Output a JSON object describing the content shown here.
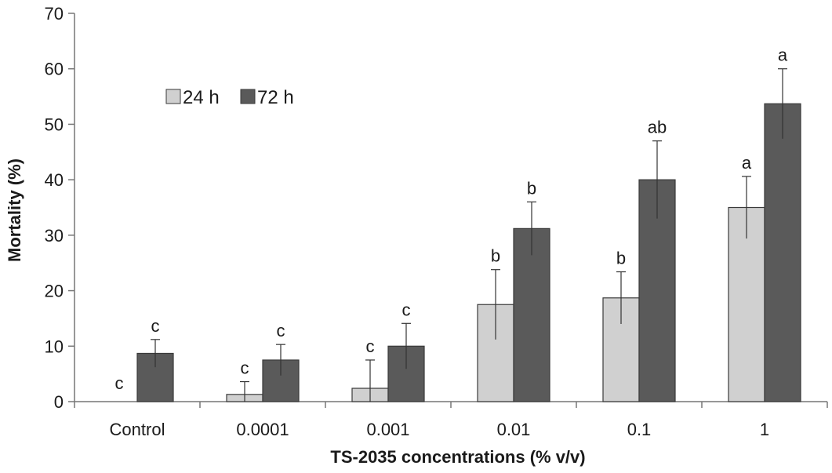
{
  "chart_data": {
    "type": "bar",
    "title": "",
    "xlabel": "TS-2035 concentrations (% v/v)",
    "ylabel": "Mortality (%)",
    "ylim": [
      0,
      70
    ],
    "yticks": [
      "0",
      "10",
      "20",
      "30",
      "40",
      "50",
      "60",
      "70"
    ],
    "categories": [
      "Control",
      "0.0001",
      "0.001",
      "0.01",
      "0.1",
      "1"
    ],
    "legend_position": "top-left",
    "grid": false,
    "series": [
      {
        "name": "24 h",
        "color": "#d0d0d0",
        "values": [
          0,
          1.3,
          2.4,
          17.5,
          18.7,
          35.0
        ],
        "errors": [
          0,
          2.3,
          5.1,
          6.3,
          4.7,
          5.6
        ],
        "labels": [
          "c",
          "c",
          "c",
          "b",
          "b",
          "a"
        ]
      },
      {
        "name": "72 h",
        "color": "#5a5a5a",
        "values": [
          8.7,
          7.5,
          10.0,
          31.2,
          40.0,
          53.7
        ],
        "errors": [
          2.5,
          2.8,
          4.1,
          4.8,
          7.0,
          6.3
        ],
        "labels": [
          "c",
          "c",
          "c",
          "b",
          "ab",
          "a"
        ]
      }
    ]
  }
}
